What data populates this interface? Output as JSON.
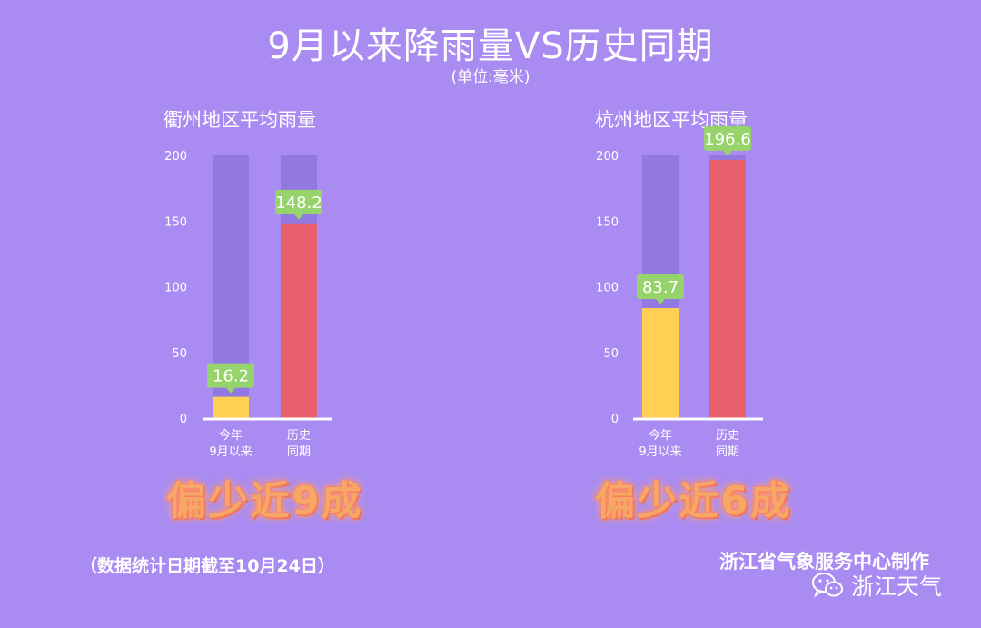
{
  "title": "9月以来降雨量VS历史同期",
  "unit": "(单位:毫米)",
  "chart_data": [
    {
      "type": "bar",
      "title": "衢州地区平均雨量",
      "categories": [
        "今年\n9月以来",
        "历史\n同期"
      ],
      "category_lines": [
        [
          "今年",
          "9月以来"
        ],
        [
          "历史",
          "同期"
        ]
      ],
      "values": [
        16.2,
        148.2
      ],
      "value_labels": [
        "16.2",
        "148.2"
      ],
      "bar_colors": [
        "#ffd054",
        "#e8606b"
      ],
      "track_color": "#9278e0",
      "ylim": [
        0,
        200
      ],
      "yticks": [
        0,
        50,
        100,
        150,
        200
      ],
      "verdict": "偏少近9成"
    },
    {
      "type": "bar",
      "title": "杭州地区平均雨量",
      "categories": [
        "今年\n9月以来",
        "历史\n同期"
      ],
      "category_lines": [
        [
          "今年",
          "9月以来"
        ],
        [
          "历史",
          "同期"
        ]
      ],
      "values": [
        83.7,
        196.6
      ],
      "value_labels": [
        "83.7",
        "196.6"
      ],
      "bar_colors": [
        "#ffd054",
        "#e8606b"
      ],
      "track_color": "#9278e0",
      "ylim": [
        0,
        200
      ],
      "yticks": [
        0,
        50,
        100,
        150,
        200
      ],
      "verdict": "偏少近6成"
    }
  ],
  "footnote": "（数据统计日期截至10月24日）",
  "credit": "浙江省气象服务中心制作",
  "wechat": {
    "icon": "wechat-icon",
    "name": "浙江天气"
  },
  "label_color": "#97d36b"
}
